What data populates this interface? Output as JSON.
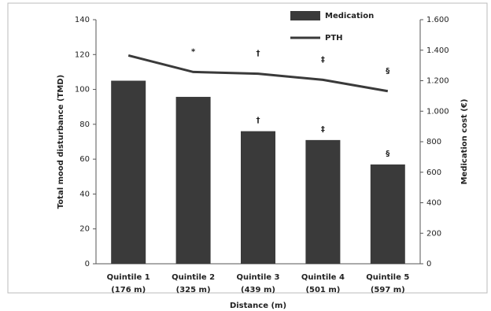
{
  "chart_data": {
    "type": "bar",
    "categories": [
      [
        "Quintile 1",
        "(176 m)"
      ],
      [
        "Quintile 2",
        "(325 m)"
      ],
      [
        "Quintile 3",
        "(439 m)"
      ],
      [
        "Quintile 4",
        "(501 m)"
      ],
      [
        "Quintile 5",
        "(597 m)"
      ]
    ],
    "x_label": "Distance (m)",
    "y_label": "Total mood disturbance (TMD)",
    "y2_label": "Medication cost (€)",
    "ylim": [
      0,
      140
    ],
    "yticks": [
      0,
      20,
      40,
      60,
      80,
      100,
      120,
      140
    ],
    "y2lim": [
      0,
      1600
    ],
    "y2ticks": [
      0,
      200,
      400,
      600,
      800,
      {
        "value": 1000,
        "label": "1.000"
      },
      {
        "value": 1200,
        "label": "1.200"
      },
      {
        "value": 1400,
        "label": "1.400"
      },
      {
        "value": 1600,
        "label": "1.600"
      }
    ],
    "series": [
      {
        "name": "Medication",
        "type": "bar",
        "axis": "y2",
        "color": "#3a3a3a",
        "values": [
          1200,
          1094,
          869,
          811,
          651
        ],
        "annotations": [
          null,
          null,
          "†",
          "‡",
          "§"
        ]
      },
      {
        "name": "PTH",
        "type": "line",
        "axis": "y",
        "color": "#3a3a3a",
        "values": [
          119.5,
          110,
          109,
          105.5,
          99
        ],
        "annotations": [
          null,
          "*",
          "†",
          "‡",
          "§"
        ]
      }
    ],
    "legend": "top-right"
  }
}
